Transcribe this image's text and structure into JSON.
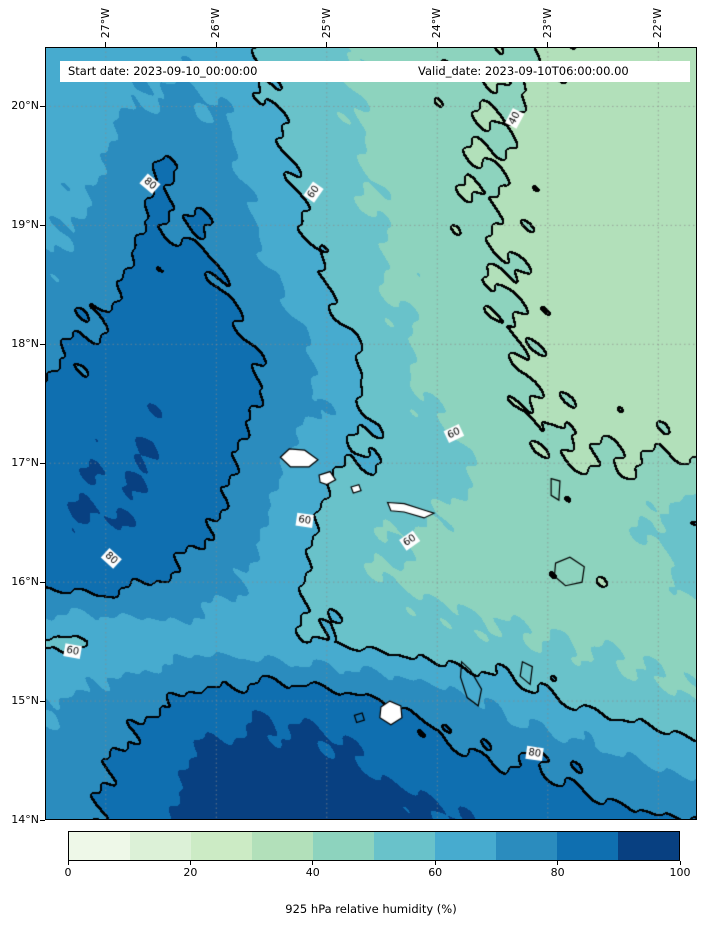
{
  "figure": {
    "header": {
      "start_date": "Start date: 2023-09-10_00:00:00",
      "valid_date": "Valid_date: 2023-09-10T06:00:00.00"
    },
    "caption": "925 hPa relative humidity (%)"
  },
  "axes": {
    "lon_extent": [
      -27.55,
      -21.65
    ],
    "lat_extent": [
      14,
      20.5
    ],
    "lon_ticks": [
      {
        "label": "27°W",
        "lon": -27
      },
      {
        "label": "26°W",
        "lon": -26
      },
      {
        "label": "25°W",
        "lon": -25
      },
      {
        "label": "24°W",
        "lon": -24
      },
      {
        "label": "23°W",
        "lon": -23
      },
      {
        "label": "22°W",
        "lon": -22
      }
    ],
    "lat_ticks": [
      {
        "label": "20°N",
        "lat": 20
      },
      {
        "label": "19°N",
        "lat": 19
      },
      {
        "label": "18°N",
        "lat": 18
      },
      {
        "label": "17°N",
        "lat": 17
      },
      {
        "label": "16°N",
        "lat": 16
      },
      {
        "label": "15°N",
        "lat": 15
      },
      {
        "label": "14°N",
        "lat": 14
      }
    ],
    "grid_lons": [
      -27,
      -26,
      -25,
      -24,
      -23,
      -22
    ],
    "grid_lats": [
      15,
      16,
      17,
      18,
      19,
      20
    ]
  },
  "chart_data": {
    "type": "heatmap",
    "title": "925 hPa relative humidity (%)",
    "field": "relative humidity",
    "pressure_level": "925 hPa",
    "units": "%",
    "levels": [
      0,
      10,
      20,
      30,
      40,
      50,
      60,
      70,
      80,
      90,
      100
    ],
    "colors": [
      "#eef8e8",
      "#dcf1d7",
      "#ccebc5",
      "#b2e0ba",
      "#8dd3be",
      "#69c2ca",
      "#47abcf",
      "#2b8cbe",
      "#0f6fb0",
      "#084081"
    ],
    "colorbar_ticks": [
      "0",
      "20",
      "40",
      "60",
      "80",
      "100"
    ],
    "contour_line_levels": [
      40,
      60,
      80
    ],
    "contour_labels": [
      {
        "text": "40",
        "lon": -23.3,
        "lat": 19.9,
        "rot": -62
      },
      {
        "text": "60",
        "lon": -25.12,
        "lat": 19.28,
        "rot": -55
      },
      {
        "text": "80",
        "lon": -26.6,
        "lat": 19.35,
        "rot": 40
      },
      {
        "text": "60",
        "lon": -23.85,
        "lat": 17.25,
        "rot": -25
      },
      {
        "text": "60",
        "lon": -25.2,
        "lat": 16.52,
        "rot": 8
      },
      {
        "text": "60",
        "lon": -24.25,
        "lat": 16.35,
        "rot": -35
      },
      {
        "text": "80",
        "lon": -26.95,
        "lat": 16.2,
        "rot": 42
      },
      {
        "text": "60",
        "lon": -27.3,
        "lat": 15.42,
        "rot": 10
      },
      {
        "text": "80",
        "lon": -23.12,
        "lat": 14.56,
        "rot": 8
      }
    ],
    "grid": {
      "lons": [
        -27.5,
        -27,
        -26.5,
        -26,
        -25.5,
        -25,
        -24.5,
        -24,
        -23.5,
        -23,
        -22.5,
        -22,
        -21.5
      ],
      "lats": [
        20.5,
        20,
        19.5,
        19,
        18.5,
        18,
        17.5,
        17,
        16.5,
        16,
        15.5,
        15,
        14.5,
        14
      ],
      "values": [
        [
          62,
          64,
          68,
          66,
          58,
          52,
          46,
          43,
          42,
          40,
          37,
          35,
          34
        ],
        [
          64,
          67,
          72,
          70,
          60,
          53,
          47,
          43,
          41,
          38,
          36,
          34,
          33
        ],
        [
          66,
          70,
          80,
          76,
          63,
          55,
          48,
          43,
          40,
          37,
          35,
          34,
          33
        ],
        [
          68,
          74,
          81,
          78,
          66,
          56,
          49,
          44,
          40,
          37,
          35,
          34,
          33
        ],
        [
          72,
          79,
          84,
          82,
          72,
          60,
          51,
          45,
          41,
          38,
          36,
          34,
          33
        ],
        [
          77,
          83,
          86,
          84,
          78,
          66,
          54,
          46,
          42,
          38,
          36,
          35,
          34
        ],
        [
          82,
          86,
          88,
          85,
          79,
          70,
          57,
          48,
          43,
          39,
          37,
          36,
          36
        ],
        [
          86,
          89,
          90,
          84,
          72,
          62,
          58,
          57,
          46,
          41,
          40,
          40,
          41
        ],
        [
          89,
          90,
          87,
          80,
          68,
          57,
          52,
          49,
          46,
          44,
          45,
          52,
          63
        ],
        [
          82,
          84,
          80,
          73,
          65,
          56,
          50,
          47,
          45,
          43,
          42,
          46,
          55
        ],
        [
          58,
          61,
          64,
          66,
          64,
          60,
          57,
          54,
          52,
          50,
          48,
          46,
          45
        ],
        [
          70,
          74,
          79,
          85,
          87,
          85,
          80,
          74,
          68,
          62,
          57,
          53,
          50
        ],
        [
          73,
          79,
          87,
          93,
          95,
          93,
          89,
          85,
          81,
          80,
          74,
          69,
          65
        ],
        [
          75,
          81,
          89,
          95,
          97,
          95,
          93,
          91,
          87,
          85,
          83,
          81,
          80
        ]
      ]
    },
    "islands": [
      {
        "name": "santo-antao",
        "fill": true,
        "pts": [
          [
            -25.42,
            17.05
          ],
          [
            -25.34,
            17.12
          ],
          [
            -25.2,
            17.11
          ],
          [
            -25.08,
            17.03
          ],
          [
            -25.16,
            16.97
          ],
          [
            -25.33,
            16.97
          ]
        ]
      },
      {
        "name": "sao-vicente",
        "fill": true,
        "pts": [
          [
            -25.07,
            16.9
          ],
          [
            -24.97,
            16.93
          ],
          [
            -24.92,
            16.86
          ],
          [
            -25.0,
            16.82
          ],
          [
            -25.06,
            16.84
          ]
        ]
      },
      {
        "name": "santa-luzia",
        "fill": true,
        "pts": [
          [
            -24.78,
            16.8
          ],
          [
            -24.71,
            16.82
          ],
          [
            -24.69,
            16.77
          ],
          [
            -24.76,
            16.75
          ]
        ]
      },
      {
        "name": "sao-nicolau",
        "fill": true,
        "pts": [
          [
            -24.45,
            16.67
          ],
          [
            -24.3,
            16.66
          ],
          [
            -24.1,
            16.6
          ],
          [
            -24.03,
            16.58
          ],
          [
            -24.12,
            16.54
          ],
          [
            -24.3,
            16.59
          ],
          [
            -24.42,
            16.6
          ]
        ]
      },
      {
        "name": "sal",
        "fill": false,
        "pts": [
          [
            -22.97,
            16.87
          ],
          [
            -22.89,
            16.85
          ],
          [
            -22.9,
            16.69
          ],
          [
            -22.97,
            16.73
          ]
        ]
      },
      {
        "name": "boa-vista",
        "fill": false,
        "pts": [
          [
            -22.93,
            16.16
          ],
          [
            -22.8,
            16.21
          ],
          [
            -22.67,
            16.13
          ],
          [
            -22.69,
            16.0
          ],
          [
            -22.84,
            15.97
          ],
          [
            -22.94,
            16.05
          ]
        ]
      },
      {
        "name": "maio",
        "fill": false,
        "pts": [
          [
            -23.23,
            15.33
          ],
          [
            -23.14,
            15.29
          ],
          [
            -23.16,
            15.14
          ],
          [
            -23.25,
            15.21
          ]
        ]
      },
      {
        "name": "santiago",
        "fill": false,
        "pts": [
          [
            -23.78,
            15.33
          ],
          [
            -23.7,
            15.26
          ],
          [
            -23.6,
            15.1
          ],
          [
            -23.63,
            14.96
          ],
          [
            -23.73,
            15.03
          ],
          [
            -23.79,
            15.2
          ]
        ]
      },
      {
        "name": "fogo",
        "fill": true,
        "pts": [
          [
            -24.51,
            14.95
          ],
          [
            -24.43,
            15.0
          ],
          [
            -24.33,
            14.96
          ],
          [
            -24.32,
            14.86
          ],
          [
            -24.42,
            14.8
          ],
          [
            -24.52,
            14.86
          ]
        ]
      },
      {
        "name": "brava",
        "fill": false,
        "pts": [
          [
            -24.75,
            14.88
          ],
          [
            -24.68,
            14.9
          ],
          [
            -24.66,
            14.84
          ],
          [
            -24.73,
            14.82
          ]
        ]
      }
    ]
  }
}
